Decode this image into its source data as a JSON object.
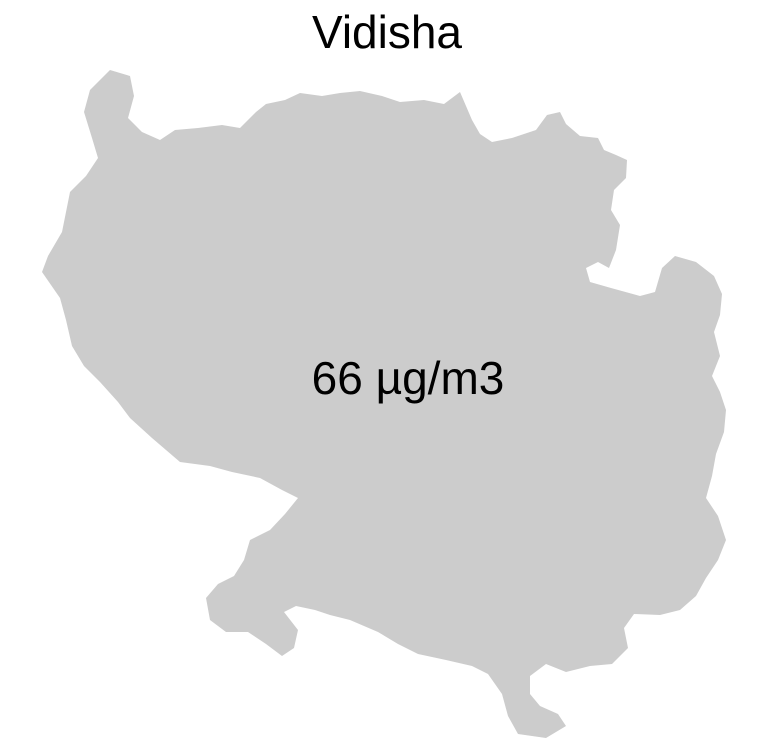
{
  "map": {
    "title": "Vidisha",
    "region_fill": "#cccccc",
    "value_label": "66 µg/m3"
  }
}
